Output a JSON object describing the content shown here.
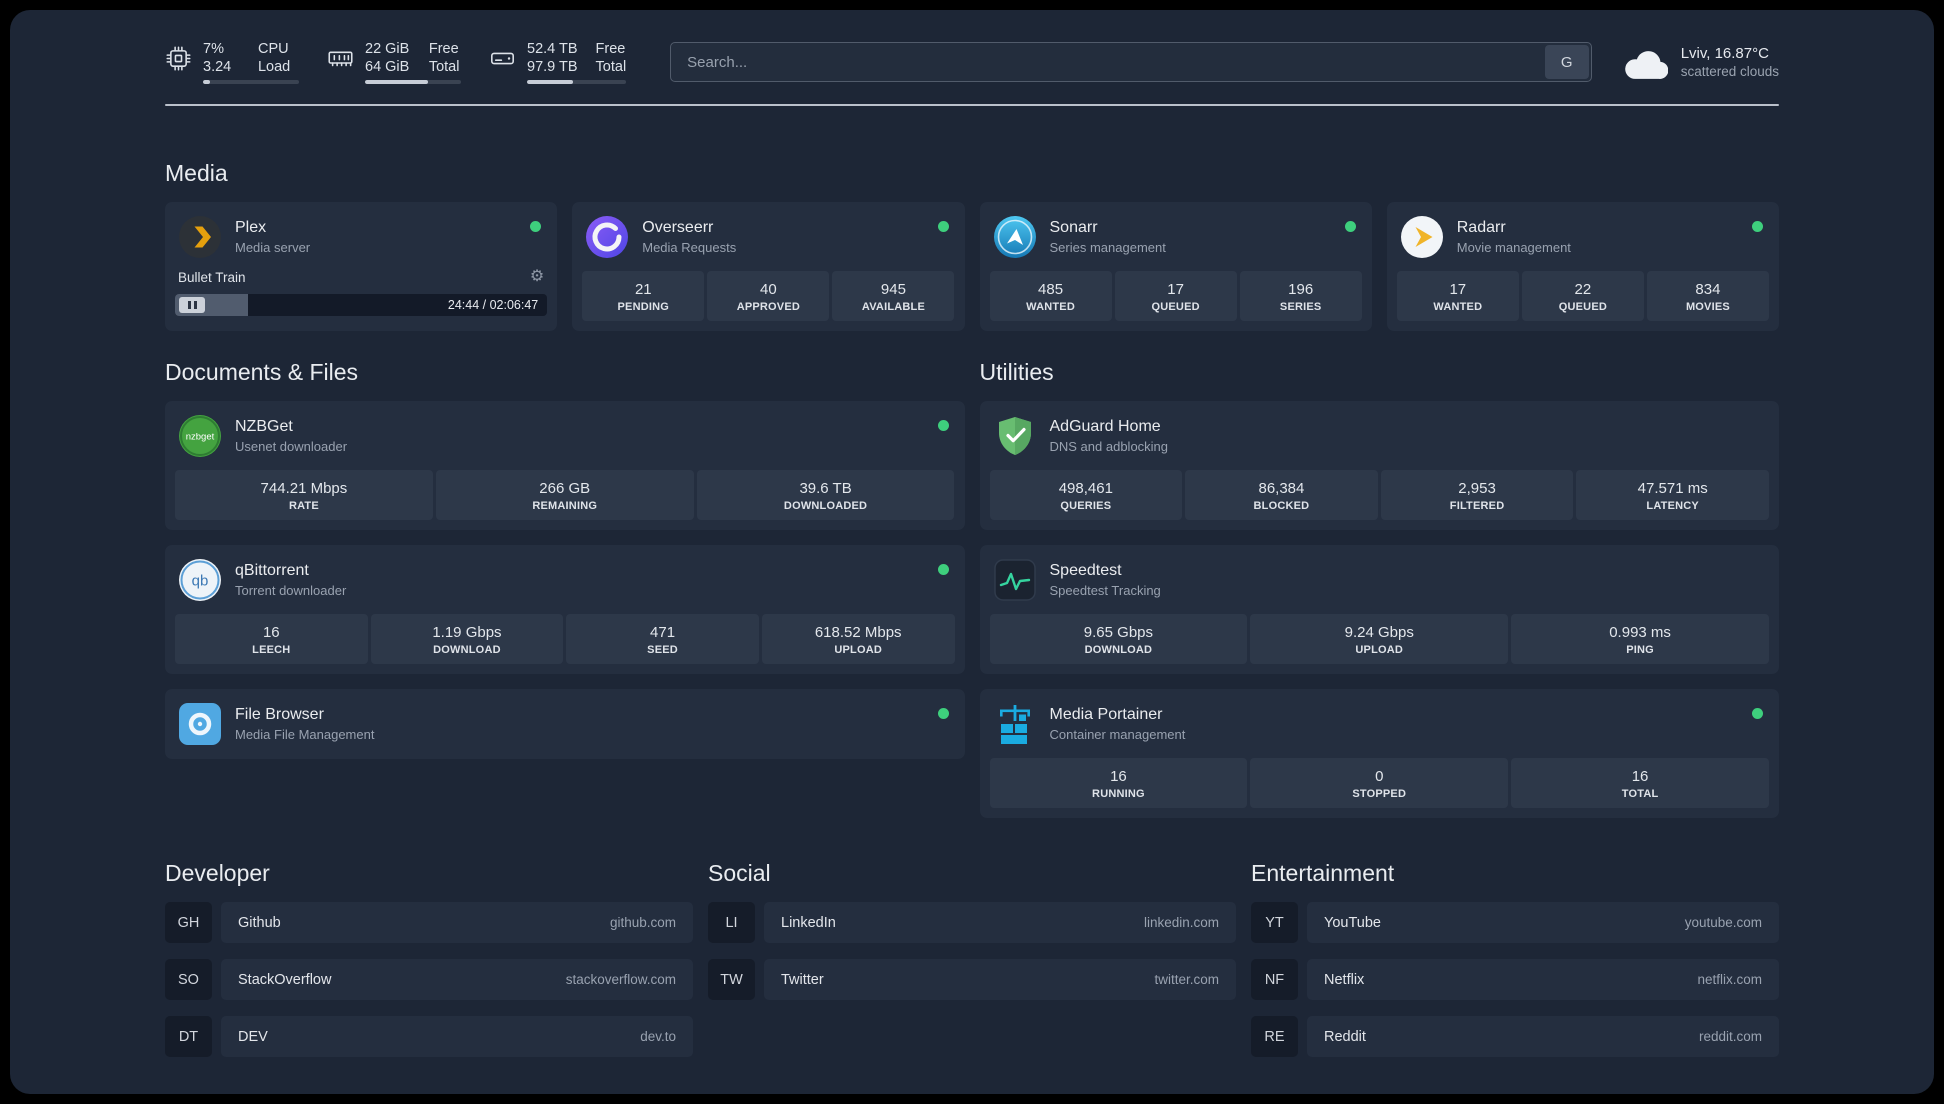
{
  "colors": {
    "status_online": "#3ecf7d",
    "plex_amber": "#e5a00d",
    "panel_background": "#1d2636"
  },
  "icons": {
    "gear": "⚙"
  },
  "header": {
    "cpu": {
      "percent": "7%",
      "load": "3.24",
      "label_top": "CPU",
      "label_bottom": "Load",
      "bar": "7%"
    },
    "memory": {
      "free": "22 GiB",
      "total": "64 GiB",
      "label_top": "Free",
      "label_bottom": "Total",
      "bar": "66%"
    },
    "disk": {
      "free": "52.4 TB",
      "total": "97.9 TB",
      "label_top": "Free",
      "label_bottom": "Total",
      "bar": "46%"
    },
    "search": {
      "placeholder": "Search...",
      "button_label": "G"
    },
    "weather": {
      "location": "Lviv, 16.87°C",
      "condition": "scattered clouds"
    }
  },
  "media": {
    "title": "Media",
    "plex": {
      "name": "Plex",
      "subtitle": "Media server",
      "now_playing": "Bullet Train",
      "progress": "19.5%",
      "time": "24:44 / 02:06:47"
    },
    "overseerr": {
      "name": "Overseerr",
      "subtitle": "Media Requests",
      "stats": [
        {
          "value": "21",
          "label": "PENDING"
        },
        {
          "value": "40",
          "label": "APPROVED"
        },
        {
          "value": "945",
          "label": "AVAILABLE"
        }
      ]
    },
    "sonarr": {
      "name": "Sonarr",
      "subtitle": "Series management",
      "stats": [
        {
          "value": "485",
          "label": "WANTED"
        },
        {
          "value": "17",
          "label": "QUEUED"
        },
        {
          "value": "196",
          "label": "SERIES"
        }
      ]
    },
    "radarr": {
      "name": "Radarr",
      "subtitle": "Movie management",
      "stats": [
        {
          "value": "17",
          "label": "WANTED"
        },
        {
          "value": "22",
          "label": "QUEUED"
        },
        {
          "value": "834",
          "label": "MOVIES"
        }
      ]
    }
  },
  "documents": {
    "title": "Documents & Files",
    "nzbget": {
      "name": "NZBGet",
      "subtitle": "Usenet downloader",
      "stats": [
        {
          "value": "744.21 Mbps",
          "label": "RATE"
        },
        {
          "value": "266 GB",
          "label": "REMAINING"
        },
        {
          "value": "39.6 TB",
          "label": "DOWNLOADED"
        }
      ]
    },
    "qbittorrent": {
      "name": "qBittorrent",
      "subtitle": "Torrent downloader",
      "stats": [
        {
          "value": "16",
          "label": "LEECH"
        },
        {
          "value": "1.19 Gbps",
          "label": "DOWNLOAD"
        },
        {
          "value": "471",
          "label": "SEED"
        },
        {
          "value": "618.52 Mbps",
          "label": "UPLOAD"
        }
      ]
    },
    "filebrowser": {
      "name": "File Browser",
      "subtitle": "Media File Management"
    }
  },
  "utilities": {
    "title": "Utilities",
    "adguard": {
      "name": "AdGuard Home",
      "subtitle": "DNS and adblocking",
      "stats": [
        {
          "value": "498,461",
          "label": "QUERIES"
        },
        {
          "value": "86,384",
          "label": "BLOCKED"
        },
        {
          "value": "2,953",
          "label": "FILTERED"
        },
        {
          "value": "47.571 ms",
          "label": "LATENCY"
        }
      ]
    },
    "speedtest": {
      "name": "Speedtest",
      "subtitle": "Speedtest Tracking",
      "stats": [
        {
          "value": "9.65 Gbps",
          "label": "DOWNLOAD"
        },
        {
          "value": "9.24 Gbps",
          "label": "UPLOAD"
        },
        {
          "value": "0.993 ms",
          "label": "PING"
        }
      ]
    },
    "portainer": {
      "name": "Media Portainer",
      "subtitle": "Container management",
      "stats": [
        {
          "value": "16",
          "label": "RUNNING"
        },
        {
          "value": "0",
          "label": "STOPPED"
        },
        {
          "value": "16",
          "label": "TOTAL"
        }
      ]
    }
  },
  "bookmarks": {
    "developer": {
      "title": "Developer",
      "items": [
        {
          "abbr": "GH",
          "name": "Github",
          "domain": "github.com"
        },
        {
          "abbr": "SO",
          "name": "StackOverflow",
          "domain": "stackoverflow.com"
        },
        {
          "abbr": "DT",
          "name": "DEV",
          "domain": "dev.to"
        }
      ]
    },
    "social": {
      "title": "Social",
      "items": [
        {
          "abbr": "LI",
          "name": "LinkedIn",
          "domain": "linkedin.com"
        },
        {
          "abbr": "TW",
          "name": "Twitter",
          "domain": "twitter.com"
        }
      ]
    },
    "entertainment": {
      "title": "Entertainment",
      "items": [
        {
          "abbr": "YT",
          "name": "YouTube",
          "domain": "youtube.com"
        },
        {
          "abbr": "NF",
          "name": "Netflix",
          "domain": "netflix.com"
        },
        {
          "abbr": "RE",
          "name": "Reddit",
          "domain": "reddit.com"
        }
      ]
    }
  }
}
